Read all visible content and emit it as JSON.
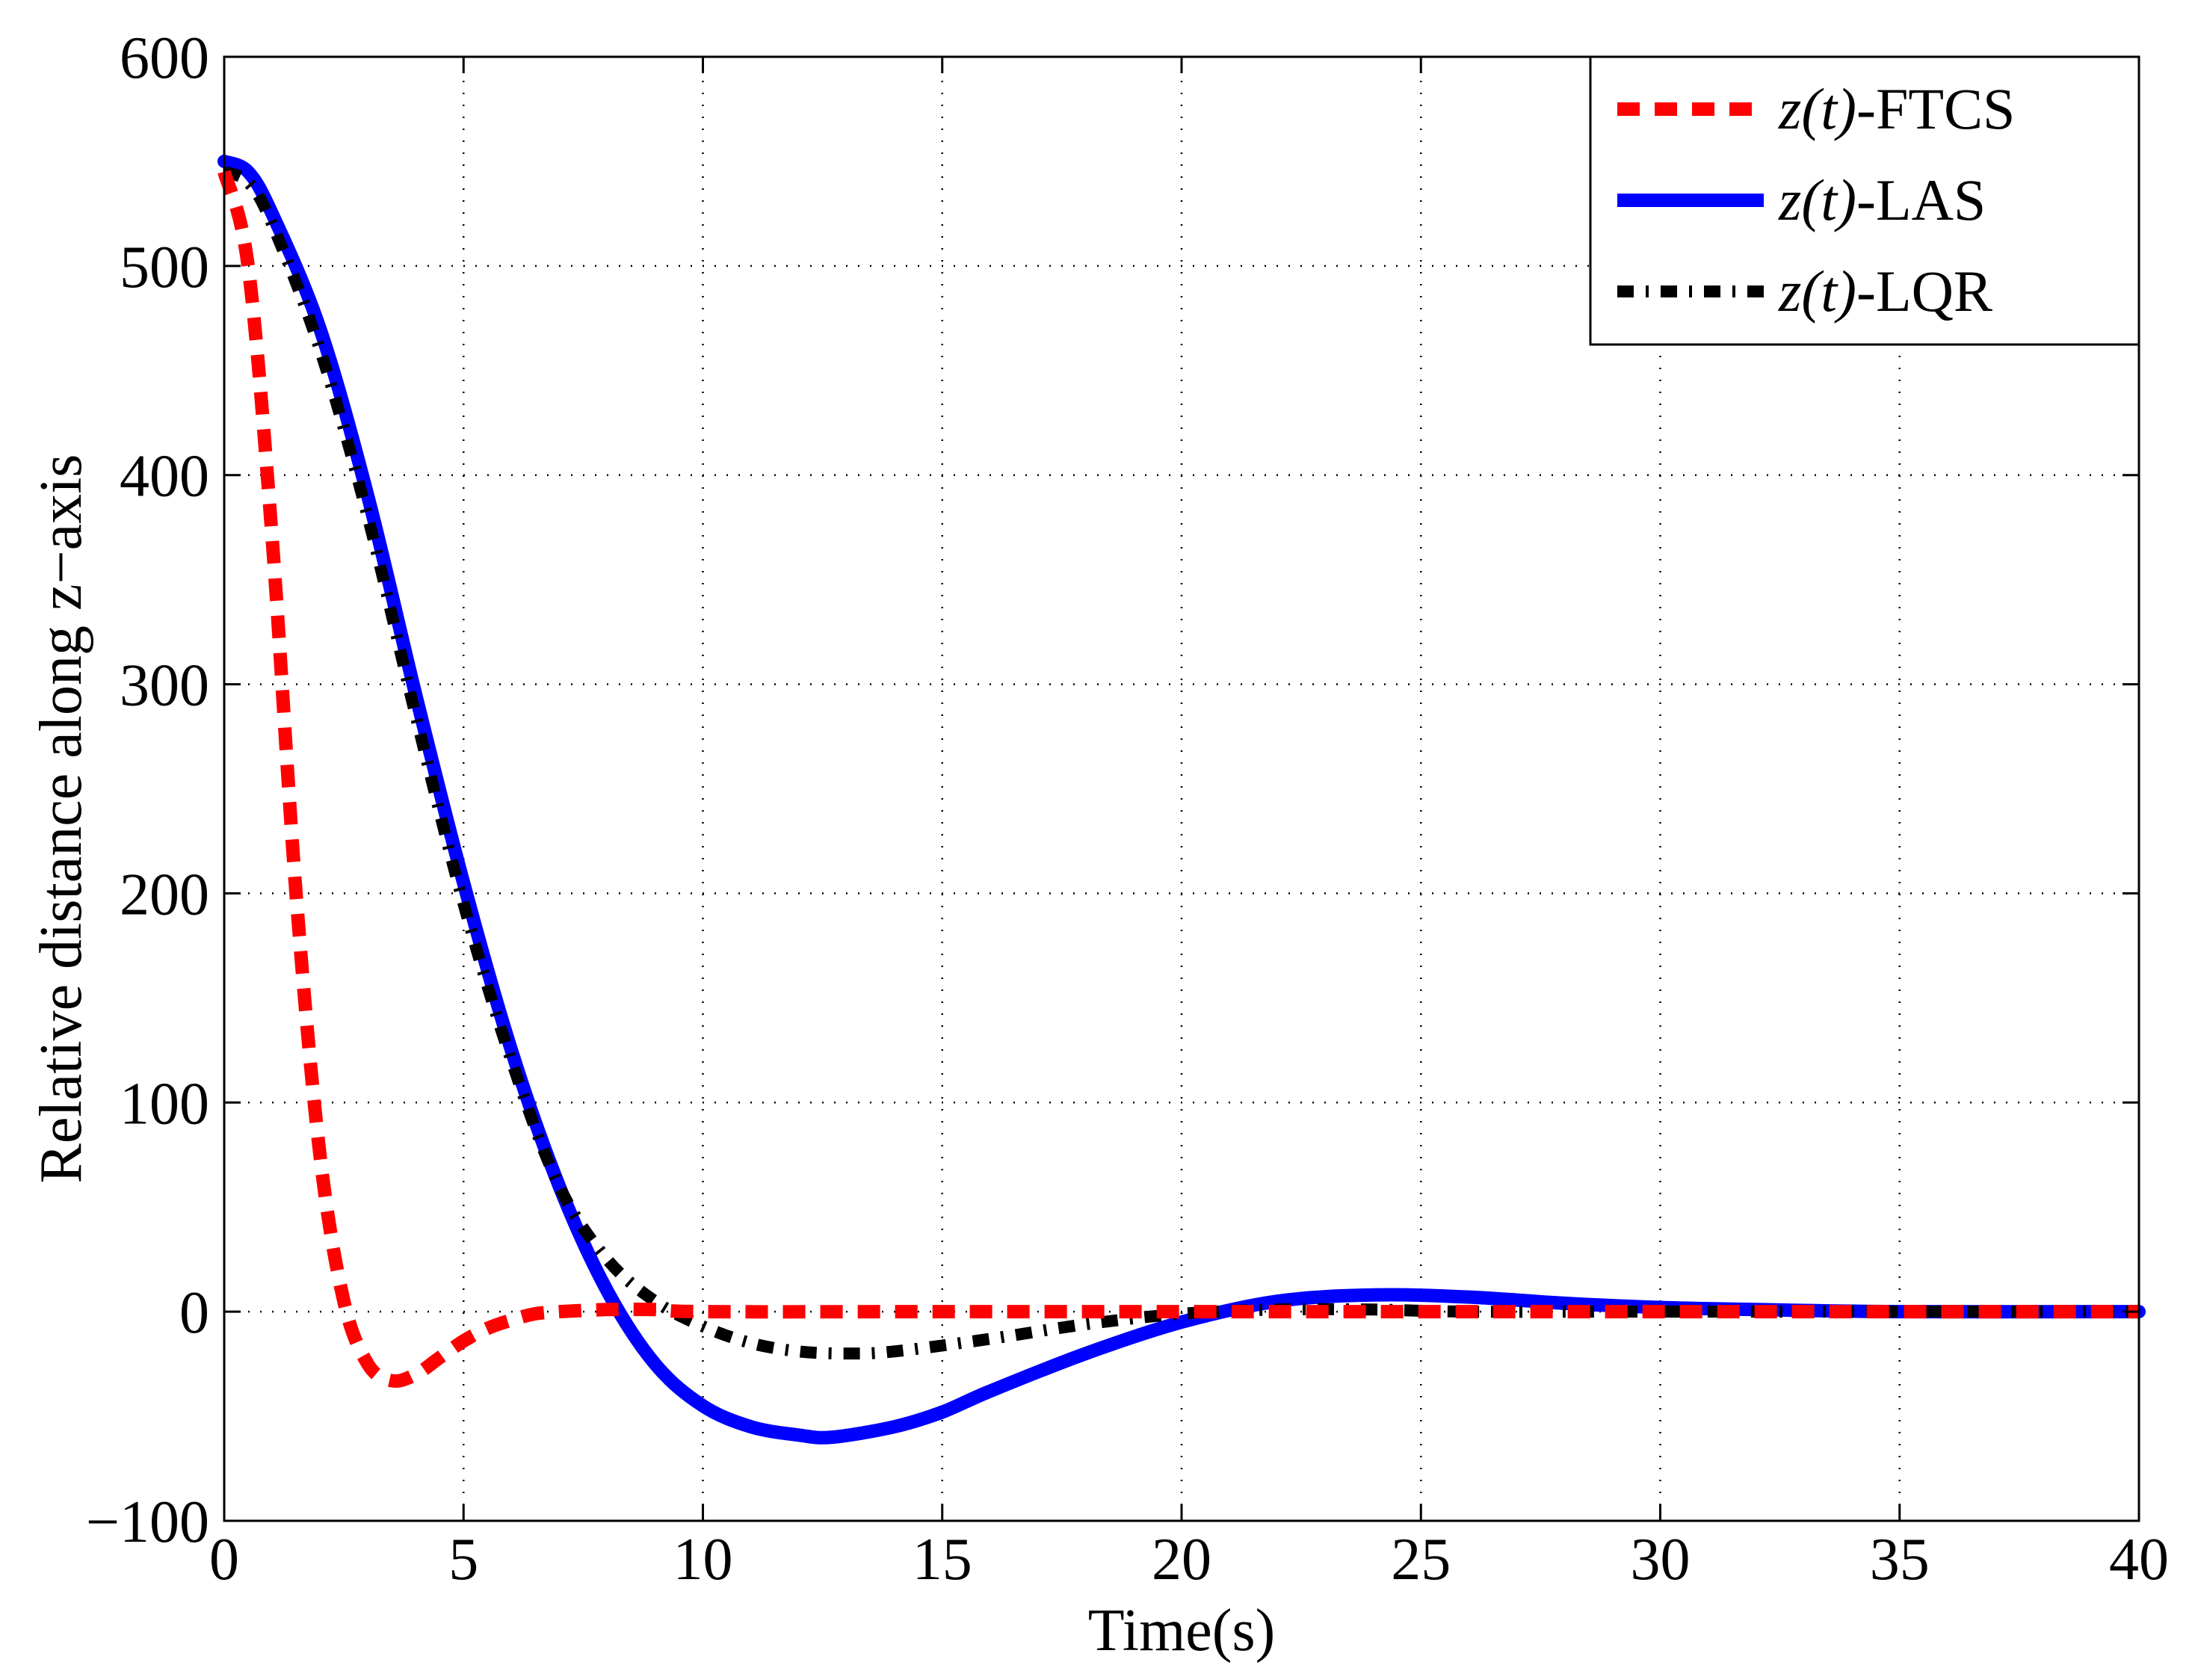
{
  "chart_data": {
    "type": "line",
    "title": "",
    "xlabel": "Time(s)",
    "ylabel": "Relative distance along z−axis",
    "xlim": [
      0,
      40
    ],
    "ylim": [
      -100,
      600
    ],
    "xticks": [
      0,
      5,
      10,
      15,
      20,
      25,
      30,
      35,
      40
    ],
    "xtick_labels": [
      "0",
      "5",
      "10",
      "15",
      "20",
      "25",
      "30",
      "35",
      "40"
    ],
    "yticks": [
      -100,
      0,
      100,
      200,
      300,
      400,
      500,
      600
    ],
    "ytick_labels": [
      "−100",
      "0",
      "100",
      "200",
      "300",
      "400",
      "500",
      "600"
    ],
    "grid": true,
    "legend_position": "top-right",
    "series": [
      {
        "name": "z(t)-FTCS",
        "legend_math": "z(t)",
        "legend_suffix": "-FTCS",
        "color": "#ff0000",
        "style": "dashed",
        "x": [
          0,
          0.5,
          1.0,
          1.5,
          2.0,
          2.5,
          3.0,
          3.5,
          4.0,
          4.5,
          5.0,
          5.5,
          6.0,
          6.5,
          7.0,
          8.0,
          9.0,
          10,
          15,
          20,
          25,
          30,
          35,
          40
        ],
        "y": [
          545,
          500,
          370,
          200,
          75,
          5,
          -25,
          -33,
          -30,
          -22,
          -14,
          -8,
          -4,
          -1,
          0,
          1,
          1,
          0,
          0,
          0,
          0,
          0,
          0,
          0
        ]
      },
      {
        "name": "z(t)-LAS",
        "legend_math": "z(t)",
        "legend_suffix": "-LAS",
        "color": "#0000ff",
        "style": "solid",
        "x": [
          0,
          0.5,
          1,
          2,
          3,
          4,
          5,
          6,
          7,
          8,
          9,
          10,
          11,
          12,
          12.7,
          14,
          15,
          16,
          18,
          20,
          22,
          24,
          26,
          28,
          30,
          32,
          35,
          40
        ],
        "y": [
          550,
          545,
          525,
          470,
          390,
          295,
          205,
          125,
          60,
          10,
          -25,
          -45,
          -55,
          -59,
          -60,
          -55,
          -48,
          -38,
          -20,
          -5,
          5,
          8,
          7,
          4,
          2,
          1,
          0,
          0
        ]
      },
      {
        "name": "z(t)-LQR",
        "legend_math": "z(t)",
        "legend_suffix": "-LQR",
        "color": "#000000",
        "style": "dashdot",
        "x": [
          0,
          0.5,
          1,
          2,
          3,
          4,
          5,
          6,
          7,
          8,
          9,
          10,
          11,
          12,
          13,
          14,
          16,
          18,
          20,
          22,
          24,
          26,
          30,
          40
        ],
        "y": [
          545,
          540,
          520,
          460,
          380,
          285,
          195,
          120,
          60,
          25,
          5,
          -7,
          -15,
          -19,
          -20,
          -19,
          -13,
          -6,
          -1,
          1,
          1,
          0,
          0,
          0
        ]
      }
    ]
  }
}
